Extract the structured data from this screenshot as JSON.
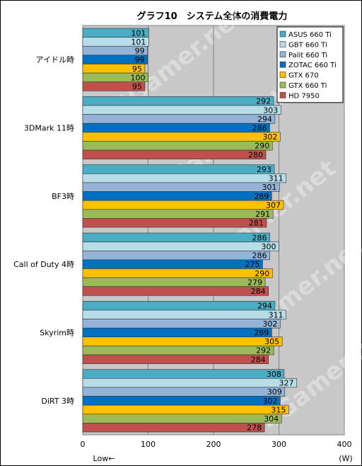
{
  "chart_data": {
    "type": "bar",
    "orientation": "horizontal",
    "title": "グラフ10　システム全体の消費電力",
    "categories": [
      "アイドル時",
      "3DMark 11時",
      "BF3時",
      "Call of Duty 4時",
      "Skyrim時",
      "DiRT 3時"
    ],
    "series": [
      {
        "name": "ASUS 660 Ti",
        "color": "#4BACC6",
        "values": [
          101,
          292,
          293,
          286,
          294,
          308
        ]
      },
      {
        "name": "GBT 660 Ti",
        "color": "#B7DEE8",
        "values": [
          101,
          303,
          311,
          300,
          311,
          327
        ]
      },
      {
        "name": "Palit 660 Ti",
        "color": "#95B3D7",
        "values": [
          99,
          294,
          301,
          286,
          302,
          309
        ]
      },
      {
        "name": "ZOTAC 660 Ti",
        "color": "#0070C0",
        "values": [
          99,
          286,
          289,
          275,
          289,
          302
        ]
      },
      {
        "name": "GTX 670",
        "color": "#FFC000",
        "values": [
          95,
          302,
          307,
          290,
          305,
          315
        ]
      },
      {
        "name": "GTX 660 Ti",
        "color": "#9BBB59",
        "values": [
          100,
          290,
          291,
          279,
          292,
          304
        ]
      },
      {
        "name": "HD 7950",
        "color": "#C0504D",
        "values": [
          95,
          280,
          281,
          284,
          284,
          278
        ]
      }
    ],
    "xlim": [
      0,
      400
    ],
    "xticks": [
      0,
      100,
      200,
      300,
      400
    ],
    "xlabel_left": "Low←",
    "xlabel_right": "(W)",
    "grid": true,
    "legend_position": "top-right",
    "watermark": "4Gamer.net"
  }
}
